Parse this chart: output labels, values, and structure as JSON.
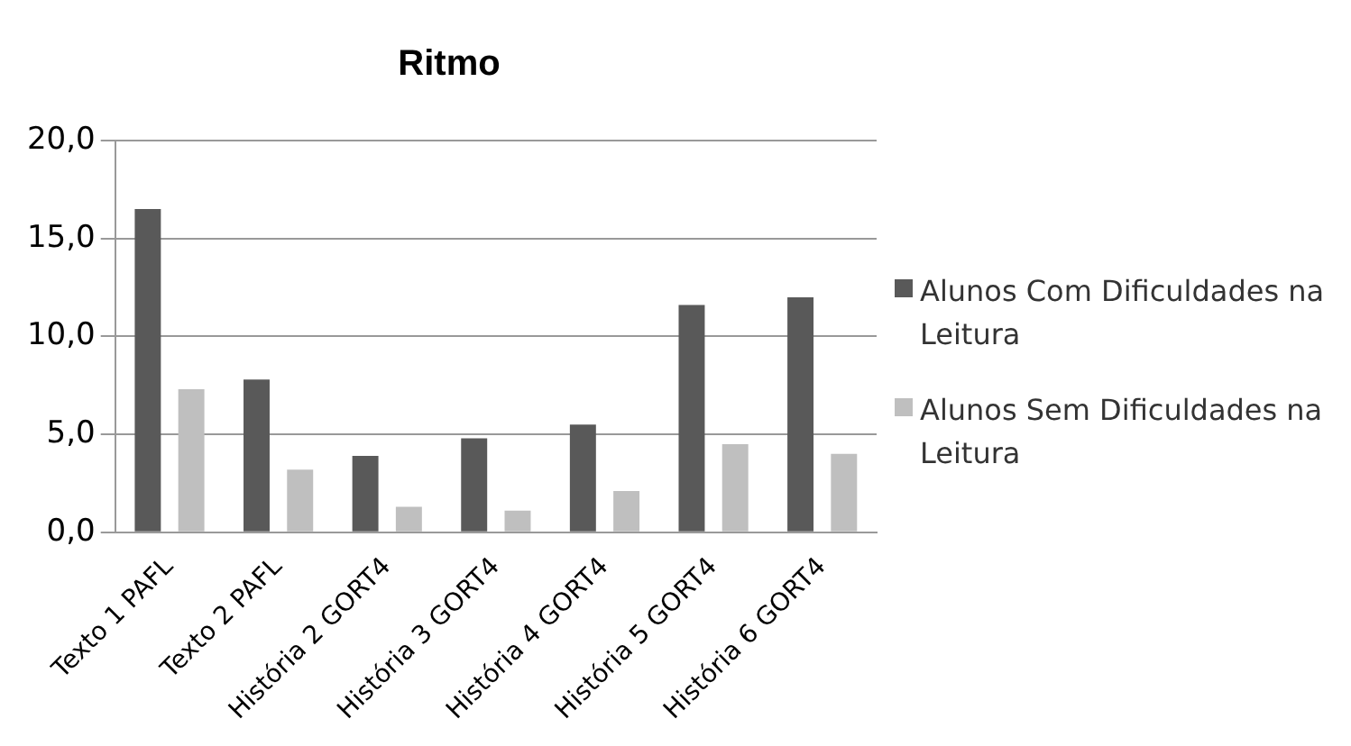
{
  "chart_data": {
    "type": "bar",
    "title": "Ritmo",
    "categories": [
      "Texto 1 PAFL",
      "Texto 2 PAFL",
      "História 2 GORT4",
      "História 3 GORT4",
      "História 4 GORT4",
      "História 5 GORT4",
      "História 6 GORT4"
    ],
    "series": [
      {
        "name": "Alunos Com Dificuldades na Leitura",
        "color": "#595959",
        "values": [
          16.5,
          7.8,
          3.9,
          4.8,
          5.5,
          11.6,
          12.0
        ]
      },
      {
        "name": "Alunos Sem Dificuldades na Leitura",
        "color": "#bfbfbf",
        "values": [
          7.3,
          3.2,
          1.3,
          1.1,
          2.1,
          4.5,
          4.0
        ]
      }
    ],
    "ylim": [
      0,
      20
    ],
    "yticks": [
      {
        "value": 0,
        "label": "0,0"
      },
      {
        "value": 5,
        "label": "5,0"
      },
      {
        "value": 10,
        "label": "10,0"
      },
      {
        "value": 15,
        "label": "15,0"
      },
      {
        "value": 20,
        "label": "20,0"
      }
    ],
    "grid": "y",
    "legend": "right"
  }
}
